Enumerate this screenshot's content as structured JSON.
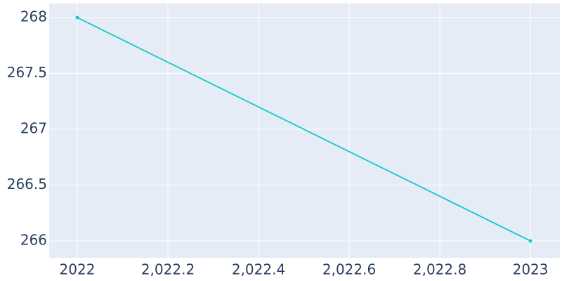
{
  "chart_data": {
    "type": "line",
    "x": [
      2022,
      2023
    ],
    "series": [
      {
        "color": "#12c9c9",
        "values": [
          268,
          266
        ]
      }
    ],
    "xlim": [
      2021.938,
      2023.065
    ],
    "xticks": [
      2022,
      {
        "value": 2022.2,
        "label": "2,022.2"
      },
      {
        "value": 2022.4,
        "label": "2,022.4"
      },
      {
        "value": 2022.6,
        "label": "2,022.6"
      },
      {
        "value": 2022.8,
        "label": "2,022.8"
      },
      2023
    ],
    "ylim": [
      265.849,
      268.126
    ],
    "yticks": [
      266,
      266.5,
      267,
      267.5,
      268
    ],
    "grid": true
  }
}
